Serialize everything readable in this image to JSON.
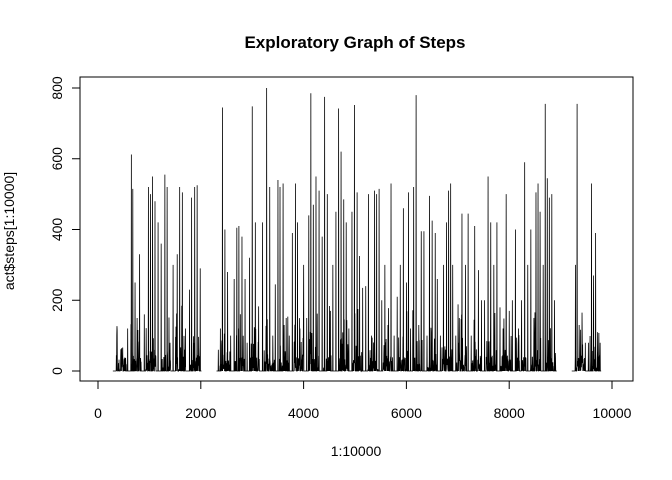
{
  "chart_data": {
    "type": "line",
    "title": "Exploratory Graph of Steps",
    "xlabel": "1:10000",
    "ylabel": "act$steps[1:10000]",
    "xlim": [
      0,
      10000
    ],
    "ylim": [
      0,
      800
    ],
    "xticks": [
      0,
      2000,
      4000,
      6000,
      8000,
      10000
    ],
    "yticks": [
      0,
      200,
      400,
      600,
      800
    ],
    "grid": false,
    "line_color": "#000000",
    "missing_ranges": [
      [
        0,
        288
      ],
      [
        2017,
        2304
      ],
      [
        8929,
        9216
      ],
      [
        9793,
        10000
      ]
    ],
    "peaks": [
      [
        577,
        120
      ],
      [
        650,
        612
      ],
      [
        676,
        515
      ],
      [
        720,
        250
      ],
      [
        760,
        150
      ],
      [
        810,
        330
      ],
      [
        900,
        160
      ],
      [
        980,
        520
      ],
      [
        1020,
        500
      ],
      [
        1060,
        550
      ],
      [
        1110,
        480
      ],
      [
        1170,
        420
      ],
      [
        1230,
        360
      ],
      [
        1300,
        555
      ],
      [
        1345,
        520
      ],
      [
        1400,
        80
      ],
      [
        1460,
        300
      ],
      [
        1540,
        330
      ],
      [
        1590,
        520
      ],
      [
        1640,
        505
      ],
      [
        1700,
        120
      ],
      [
        1780,
        230
      ],
      [
        1820,
        490
      ],
      [
        1880,
        520
      ],
      [
        1930,
        525
      ],
      [
        1990,
        290
      ],
      [
        2340,
        60
      ],
      [
        2380,
        120
      ],
      [
        2420,
        745
      ],
      [
        2470,
        400
      ],
      [
        2520,
        280
      ],
      [
        2580,
        100
      ],
      [
        2650,
        260
      ],
      [
        2700,
        405
      ],
      [
        2740,
        410
      ],
      [
        2800,
        380
      ],
      [
        2860,
        260
      ],
      [
        2900,
        80
      ],
      [
        2950,
        320
      ],
      [
        3000,
        748
      ],
      [
        3060,
        420
      ],
      [
        3120,
        60
      ],
      [
        3200,
        420
      ],
      [
        3280,
        800
      ],
      [
        3340,
        520
      ],
      [
        3400,
        100
      ],
      [
        3450,
        245
      ],
      [
        3500,
        540
      ],
      [
        3540,
        520
      ],
      [
        3600,
        530
      ],
      [
        3660,
        150
      ],
      [
        3720,
        100
      ],
      [
        3780,
        390
      ],
      [
        3840,
        530
      ],
      [
        3880,
        420
      ],
      [
        3930,
        120
      ],
      [
        4000,
        300
      ],
      [
        4060,
        150
      ],
      [
        4100,
        440
      ],
      [
        4140,
        785
      ],
      [
        4190,
        470
      ],
      [
        4240,
        550
      ],
      [
        4300,
        510
      ],
      [
        4360,
        380
      ],
      [
        4410,
        775
      ],
      [
        4460,
        500
      ],
      [
        4520,
        170
      ],
      [
        4570,
        300
      ],
      [
        4630,
        450
      ],
      [
        4680,
        742
      ],
      [
        4730,
        620
      ],
      [
        4780,
        485
      ],
      [
        4830,
        420
      ],
      [
        4880,
        120
      ],
      [
        4940,
        450
      ],
      [
        4990,
        752
      ],
      [
        5040,
        505
      ],
      [
        5090,
        325
      ],
      [
        5150,
        235
      ],
      [
        5210,
        240
      ],
      [
        5260,
        500
      ],
      [
        5320,
        100
      ],
      [
        5380,
        510
      ],
      [
        5420,
        500
      ],
      [
        5470,
        515
      ],
      [
        5520,
        200
      ],
      [
        5580,
        300
      ],
      [
        5640,
        130
      ],
      [
        5700,
        530
      ],
      [
        5760,
        100
      ],
      [
        5820,
        210
      ],
      [
        5880,
        300
      ],
      [
        5940,
        460
      ],
      [
        6000,
        250
      ],
      [
        6040,
        505
      ],
      [
        6080,
        120
      ],
      [
        6140,
        520
      ],
      [
        6190,
        780
      ],
      [
        6240,
        130
      ],
      [
        6290,
        395
      ],
      [
        6340,
        395
      ],
      [
        6400,
        100
      ],
      [
        6450,
        495
      ],
      [
        6500,
        425
      ],
      [
        6560,
        390
      ],
      [
        6600,
        260
      ],
      [
        6660,
        100
      ],
      [
        6720,
        300
      ],
      [
        6780,
        420
      ],
      [
        6820,
        510
      ],
      [
        6860,
        530
      ],
      [
        6900,
        300
      ],
      [
        6960,
        100
      ],
      [
        7020,
        80
      ],
      [
        7080,
        445
      ],
      [
        7150,
        300
      ],
      [
        7200,
        445
      ],
      [
        7260,
        100
      ],
      [
        7330,
        410
      ],
      [
        7400,
        285
      ],
      [
        7460,
        200
      ],
      [
        7520,
        200
      ],
      [
        7590,
        550
      ],
      [
        7640,
        420
      ],
      [
        7700,
        300
      ],
      [
        7760,
        420
      ],
      [
        7820,
        180
      ],
      [
        7880,
        120
      ],
      [
        7940,
        500
      ],
      [
        8000,
        170
      ],
      [
        8060,
        200
      ],
      [
        8120,
        400
      ],
      [
        8180,
        120
      ],
      [
        8240,
        200
      ],
      [
        8300,
        590
      ],
      [
        8360,
        300
      ],
      [
        8420,
        400
      ],
      [
        8480,
        150
      ],
      [
        8520,
        505
      ],
      [
        8560,
        530
      ],
      [
        8600,
        450
      ],
      [
        8660,
        300
      ],
      [
        8700,
        755
      ],
      [
        8740,
        545
      ],
      [
        8780,
        490
      ],
      [
        8830,
        500
      ],
      [
        8880,
        200
      ],
      [
        9290,
        300
      ],
      [
        9320,
        755
      ],
      [
        9360,
        130
      ],
      [
        9420,
        100
      ],
      [
        9480,
        80
      ],
      [
        9540,
        80
      ],
      [
        9600,
        530
      ],
      [
        9640,
        270
      ],
      [
        9680,
        390
      ],
      [
        9720,
        110
      ],
      [
        9770,
        80
      ]
    ]
  }
}
